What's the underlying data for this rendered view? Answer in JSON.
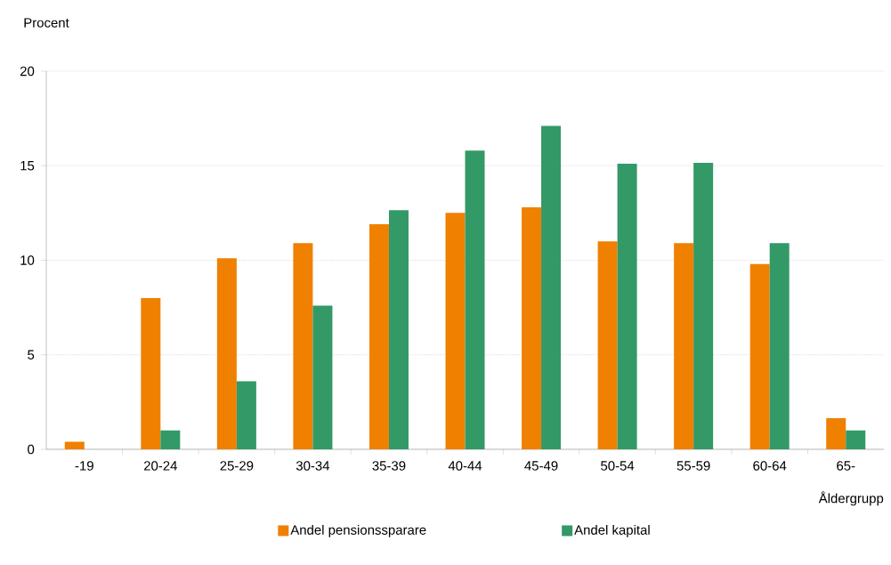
{
  "chart_data": {
    "type": "bar",
    "ylabel": "Procent",
    "xlabel": "Åldergrupp",
    "categories": [
      "-19",
      "20-24",
      "25-29",
      "30-34",
      "35-39",
      "40-44",
      "45-49",
      "50-54",
      "55-59",
      "60-64",
      "65-"
    ],
    "series": [
      {
        "name": "Andel pensionssparare",
        "color": "#f08000",
        "values": [
          0.4,
          8.0,
          10.1,
          10.9,
          11.9,
          12.5,
          12.8,
          11.0,
          10.9,
          9.8,
          1.65
        ]
      },
      {
        "name": "Andel kapital",
        "color": "#339966",
        "values": [
          null,
          1.0,
          3.6,
          7.6,
          12.65,
          15.8,
          17.1,
          15.1,
          15.15,
          10.9,
          1.0
        ]
      }
    ],
    "ylim": [
      0,
      20
    ],
    "yticks": [
      0,
      5,
      10,
      15,
      20
    ],
    "grid": "y",
    "legend": "bottom"
  }
}
